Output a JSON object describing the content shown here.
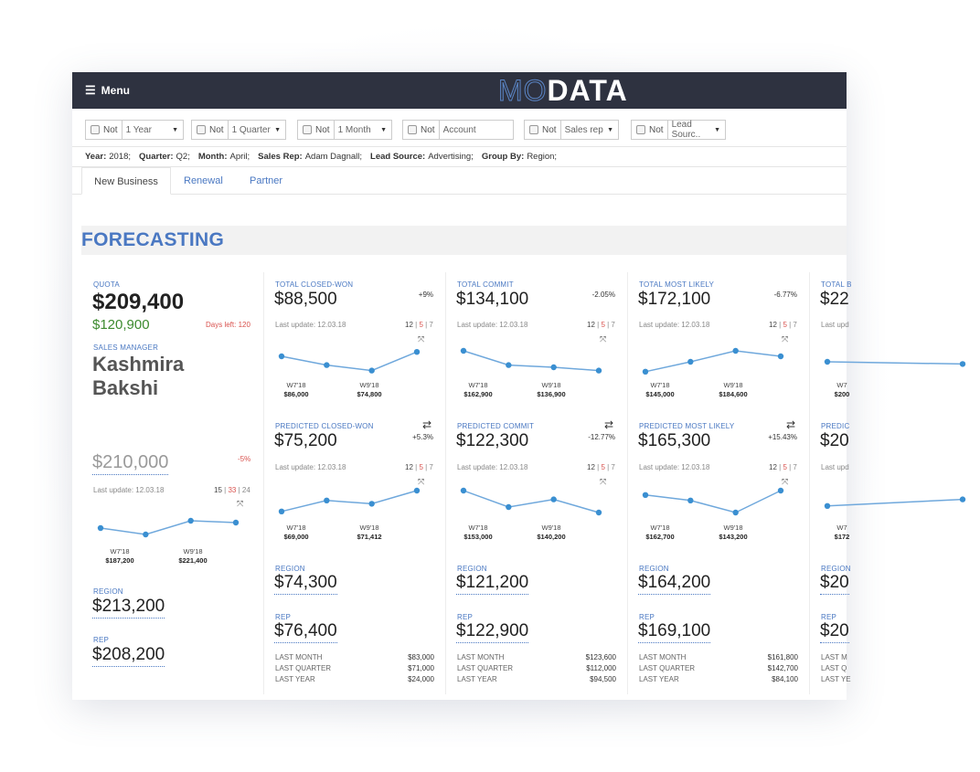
{
  "app": {
    "menu_label": "Menu",
    "logo_mo": "MO",
    "logo_data": "DATA"
  },
  "filters": [
    {
      "not": "Not",
      "value": "1 Year",
      "dropdown": true
    },
    {
      "not": "Not",
      "value": "1 Quarter",
      "dropdown": true
    },
    {
      "not": "Not",
      "value": "1 Month",
      "dropdown": true
    },
    {
      "not": "Not",
      "value": "Account",
      "dropdown": false
    },
    {
      "not": "Not",
      "value": "Sales rep",
      "dropdown": true
    },
    {
      "not": "Not",
      "value": "Lead Sourc..",
      "dropdown": true
    }
  ],
  "selection": [
    {
      "key": "Year:",
      "val": "2018;"
    },
    {
      "key": "Quarter:",
      "val": "Q2;"
    },
    {
      "key": "Month:",
      "val": "April;"
    },
    {
      "key": "Sales Rep:",
      "val": "Adam Dagnall;"
    },
    {
      "key": "Lead Source:",
      "val": "Advertising;"
    },
    {
      "key": "Group By:",
      "val": "Region;"
    }
  ],
  "tabs": [
    "New Business",
    "Renewal",
    "Partner"
  ],
  "section_title": "FORECASTING",
  "quota": {
    "label": "QUOTA",
    "value": "$209,400",
    "sub_value": "$120,900",
    "days_left": "Days left: 120",
    "manager_label": "SALES MANAGER",
    "manager_first": "Kashmira",
    "manager_last": "Bakshi",
    "forecast": "$210,000",
    "forecast_pct": "-5%",
    "last_update": "Last update: 12.03.18",
    "weeks": [
      "15",
      "33",
      "24"
    ],
    "ticks": [
      {
        "w": "W7'18",
        "v": "$187,200"
      },
      {
        "w": "W9'18",
        "v": "$221,400"
      }
    ],
    "spark": [
      0.55,
      0.2,
      0.95,
      0.85
    ],
    "region_label": "REGION",
    "region_value": "$213,200",
    "rep_label": "REP",
    "rep_value": "$208,200"
  },
  "columns": [
    {
      "total_label": "TOTAL CLOSED-WON",
      "total_value": "$88,500",
      "total_pct": "+9%",
      "total_update": "Last update: 12.03.18",
      "total_weeks": [
        "12",
        "5",
        "7"
      ],
      "total_ticks": [
        {
          "w": "W7'18",
          "v": "$86,000"
        },
        {
          "w": "W9'18",
          "v": "$74,800"
        }
      ],
      "total_spark": [
        0.75,
        0.35,
        0.1,
        0.95
      ],
      "pred_label": "PREDICTED CLOSED-WON",
      "pred_value": "$75,200",
      "pred_pct": "+5.3%",
      "pred_update": "Last update: 12.03.18",
      "pred_weeks": [
        "12",
        "5",
        "7"
      ],
      "pred_ticks": [
        {
          "w": "W7'18",
          "v": "$69,000"
        },
        {
          "w": "W9'18",
          "v": "$71,412"
        }
      ],
      "pred_spark": [
        0.05,
        0.55,
        0.4,
        1.0
      ],
      "region_label": "REGION",
      "region_value": "$74,300",
      "rep_label": "REP",
      "rep_value": "$76,400",
      "hist": [
        [
          "LAST MONTH",
          "$83,000"
        ],
        [
          "LAST QUARTER",
          "$71,000"
        ],
        [
          "LAST YEAR",
          "$24,000"
        ]
      ]
    },
    {
      "total_label": "TOTAL COMMIT",
      "total_value": "$134,100",
      "total_pct": "-2.05%",
      "total_update": "Last update: 12.03.18",
      "total_weeks": [
        "12",
        "5",
        "7"
      ],
      "total_ticks": [
        {
          "w": "W7'18",
          "v": "$162,900"
        },
        {
          "w": "W9'18",
          "v": "$136,900"
        }
      ],
      "total_spark": [
        1.0,
        0.35,
        0.25,
        0.1
      ],
      "pred_label": "PREDICTED COMMIT",
      "pred_value": "$122,300",
      "pred_pct": "-12.77%",
      "pred_update": "Last update: 12.03.18",
      "pred_weeks": [
        "12",
        "5",
        "7"
      ],
      "pred_ticks": [
        {
          "w": "W7'18",
          "v": "$153,000"
        },
        {
          "w": "W9'18",
          "v": "$140,200"
        }
      ],
      "pred_spark": [
        1.0,
        0.25,
        0.6,
        0.0
      ],
      "region_label": "REGION",
      "region_value": "$121,200",
      "rep_label": "REP",
      "rep_value": "$122,900",
      "hist": [
        [
          "LAST MONTH",
          "$123,600"
        ],
        [
          "LAST QUARTER",
          "$112,000"
        ],
        [
          "LAST YEAR",
          "$94,500"
        ]
      ]
    },
    {
      "total_label": "TOTAL MOST LIKELY",
      "total_value": "$172,100",
      "total_pct": "-6.77%",
      "total_update": "Last update: 12.03.18",
      "total_weeks": [
        "12",
        "5",
        "7"
      ],
      "total_ticks": [
        {
          "w": "W7'18",
          "v": "$145,000"
        },
        {
          "w": "W9'18",
          "v": "$184,600"
        }
      ],
      "total_spark": [
        0.05,
        0.5,
        1.0,
        0.75
      ],
      "pred_label": "PREDICTED MOST LIKELY",
      "pred_value": "$165,300",
      "pred_pct": "+15.43%",
      "pred_update": "Last update: 12.03.18",
      "pred_weeks": [
        "12",
        "5",
        "7"
      ],
      "pred_ticks": [
        {
          "w": "W7'18",
          "v": "$162,700"
        },
        {
          "w": "W9'18",
          "v": "$143,200"
        }
      ],
      "pred_spark": [
        0.8,
        0.55,
        0.0,
        1.0
      ],
      "region_label": "REGION",
      "region_value": "$164,200",
      "rep_label": "REP",
      "rep_value": "$169,100",
      "hist": [
        [
          "LAST MONTH",
          "$161,800"
        ],
        [
          "LAST QUARTER",
          "$142,700"
        ],
        [
          "LAST YEAR",
          "$84,100"
        ]
      ]
    },
    {
      "total_label": "TOTAL B",
      "total_value": "$22",
      "total_pct": "",
      "total_update": "Last upd",
      "total_weeks": [
        "",
        "",
        ""
      ],
      "total_ticks": [
        {
          "w": "W7",
          "v": "$200"
        }
      ],
      "total_spark": [
        0.5,
        0.4
      ],
      "pred_label": "PREDIC",
      "pred_value": "$20",
      "pred_pct": "",
      "pred_update": "Last upd",
      "pred_weeks": [
        "",
        "",
        ""
      ],
      "pred_ticks": [
        {
          "w": "W7",
          "v": "$172"
        }
      ],
      "pred_spark": [
        0.3,
        0.6
      ],
      "region_label": "REGION",
      "region_value": "$20",
      "rep_label": "REP",
      "rep_value": "$20",
      "hist": [
        [
          "LAST M",
          ""
        ],
        [
          "LAST Q",
          ""
        ],
        [
          "LAST YE",
          ""
        ]
      ]
    }
  ]
}
